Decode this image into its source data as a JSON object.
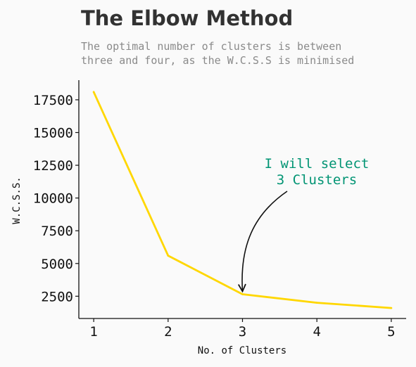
{
  "figure": {
    "title": "The Elbow Method",
    "subtitle_lines": [
      "The optimal number of clusters is between",
      "three and four, as the W.C.S.S is minimised"
    ]
  },
  "chart_data": {
    "type": "line",
    "x": [
      1,
      2,
      3,
      4,
      5
    ],
    "series": [
      {
        "values": [
          18100,
          5600,
          2650,
          2000,
          1600
        ],
        "color": "#ffd700"
      }
    ],
    "xlabel": "No. of Clusters",
    "ylabel": "W.C.S.S.",
    "xlim": [
      0.8,
      5.2
    ],
    "ylim": [
      800,
      19000
    ],
    "xticks": [
      1,
      2,
      3,
      4,
      5
    ],
    "yticks": [
      2500,
      5000,
      7500,
      10000,
      12500,
      15000,
      17500
    ],
    "grid": false,
    "annotation": {
      "lines": [
        "I will select",
        "3 Clusters"
      ],
      "color": "#009473",
      "arrow_target": {
        "x": 3,
        "y": 2650
      }
    }
  }
}
